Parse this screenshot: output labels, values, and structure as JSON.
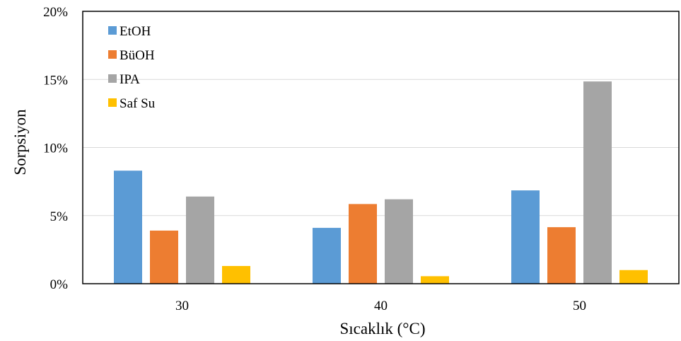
{
  "chart_data": {
    "type": "bar",
    "xlabel": "Sıcaklık (°C)",
    "ylabel": "Sorpsiyon",
    "categories": [
      "30",
      "40",
      "50"
    ],
    "ylim": [
      0,
      20
    ],
    "yticks": [
      "0%",
      "5%",
      "10%",
      "15%",
      "20%"
    ],
    "grid": true,
    "legend_position": "top-left",
    "series": [
      {
        "name": "EtOH",
        "color": "#5B9BD5",
        "values": [
          8.3,
          4.1,
          6.85
        ]
      },
      {
        "name": "BüOH",
        "color": "#ED7D31",
        "values": [
          3.9,
          5.85,
          4.15
        ]
      },
      {
        "name": "IPA",
        "color": "#A5A5A5",
        "values": [
          6.4,
          6.2,
          14.85
        ]
      },
      {
        "name": "Saf Su",
        "color": "#FFC000",
        "values": [
          1.3,
          0.55,
          1.0
        ]
      }
    ]
  }
}
